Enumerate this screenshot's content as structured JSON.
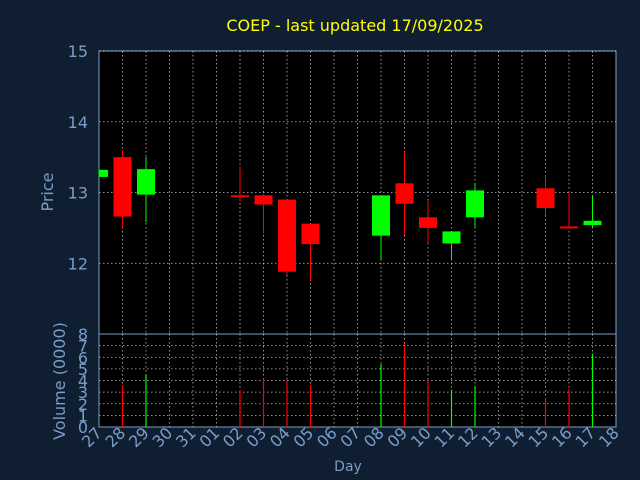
{
  "chart_data": {
    "type": "candlestick",
    "title": "COEP - last updated 17/09/2025",
    "xlabel": "Day",
    "price_panel": {
      "ylabel": "Price",
      "ylim": [
        11,
        15
      ],
      "yticks": [
        "15",
        "14",
        "13",
        "12"
      ]
    },
    "volume_panel": {
      "ylabel": "Volume (0000)",
      "ylim": [
        0,
        8
      ],
      "yticks": [
        "8",
        "7",
        "6",
        "5",
        "4",
        "3",
        "2",
        "1",
        "0"
      ]
    },
    "x_ticks": [
      "27",
      "28",
      "29",
      "30",
      "31",
      "01",
      "02",
      "03",
      "04",
      "05",
      "06",
      "07",
      "08",
      "09",
      "10",
      "11",
      "12",
      "13",
      "14",
      "15",
      "16",
      "17",
      "18"
    ],
    "candles": [
      {
        "day": "27",
        "open": 13.22,
        "high": 13.32,
        "low": 13.22,
        "close": 13.32,
        "volume": 0,
        "direction": "up"
      },
      {
        "day": "28",
        "open": 13.5,
        "high": 13.6,
        "low": 12.5,
        "close": 12.66,
        "volume": 3.6,
        "direction": "down"
      },
      {
        "day": "29",
        "open": 12.97,
        "high": 13.5,
        "low": 12.58,
        "close": 13.33,
        "volume": 4.5,
        "direction": "up"
      },
      {
        "day": "02",
        "open": 12.96,
        "high": 13.37,
        "low": 12.88,
        "close": 12.94,
        "volume": 3.2,
        "direction": "down"
      },
      {
        "day": "03",
        "open": 12.96,
        "high": 12.98,
        "low": 12.42,
        "close": 12.83,
        "volume": 4.2,
        "direction": "down"
      },
      {
        "day": "04",
        "open": 12.9,
        "high": 12.9,
        "low": 11.83,
        "close": 11.88,
        "volume": 4.0,
        "direction": "down"
      },
      {
        "day": "05",
        "open": 12.56,
        "high": 12.56,
        "low": 11.75,
        "close": 12.27,
        "volume": 3.6,
        "direction": "down"
      },
      {
        "day": "08",
        "open": 12.39,
        "high": 12.96,
        "low": 12.06,
        "close": 12.96,
        "volume": 5.4,
        "direction": "up"
      },
      {
        "day": "09",
        "open": 13.13,
        "high": 13.58,
        "low": 12.4,
        "close": 12.84,
        "volume": 7.2,
        "direction": "down"
      },
      {
        "day": "10",
        "open": 12.65,
        "high": 12.88,
        "low": 12.28,
        "close": 12.5,
        "volume": 4.0,
        "direction": "down"
      },
      {
        "day": "11",
        "open": 12.28,
        "high": 12.45,
        "low": 12.06,
        "close": 12.45,
        "volume": 3.2,
        "direction": "up"
      },
      {
        "day": "12",
        "open": 12.65,
        "high": 13.12,
        "low": 12.5,
        "close": 13.03,
        "volume": 3.5,
        "direction": "up"
      },
      {
        "day": "15",
        "open": 13.06,
        "high": 13.25,
        "low": 12.68,
        "close": 12.78,
        "volume": 2.5,
        "direction": "down"
      },
      {
        "day": "16",
        "open": 12.52,
        "high": 13.02,
        "low": 12.5,
        "close": 12.5,
        "volume": 3.3,
        "direction": "down"
      },
      {
        "day": "17",
        "open": 12.54,
        "high": 12.95,
        "low": 12.5,
        "close": 12.6,
        "volume": 6.3,
        "direction": "up"
      }
    ],
    "grid": true,
    "colors": {
      "background": "#0f1e30",
      "panel": "#000000",
      "up": "#00ff00",
      "down": "#ff0000",
      "title": "#ffff00",
      "axis_text": "#7a9ec8",
      "grid": "#ffffff"
    }
  }
}
